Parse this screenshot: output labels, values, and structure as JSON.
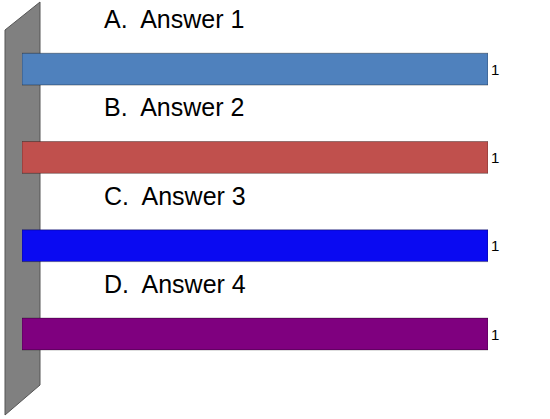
{
  "chart_data": {
    "type": "bar",
    "orientation": "horizontal",
    "categories": [
      "A.  Answer 1",
      "B.  Answer 2",
      "C.  Answer 3",
      "D.  Answer 4"
    ],
    "values": [
      1,
      1,
      1,
      1
    ],
    "colors": [
      "#4f81bd",
      "#c0504d",
      "#0a0af2",
      "#7f007f"
    ],
    "xlim": [
      0,
      1
    ],
    "data_labels": true,
    "tick_labels": false,
    "grid": false
  }
}
